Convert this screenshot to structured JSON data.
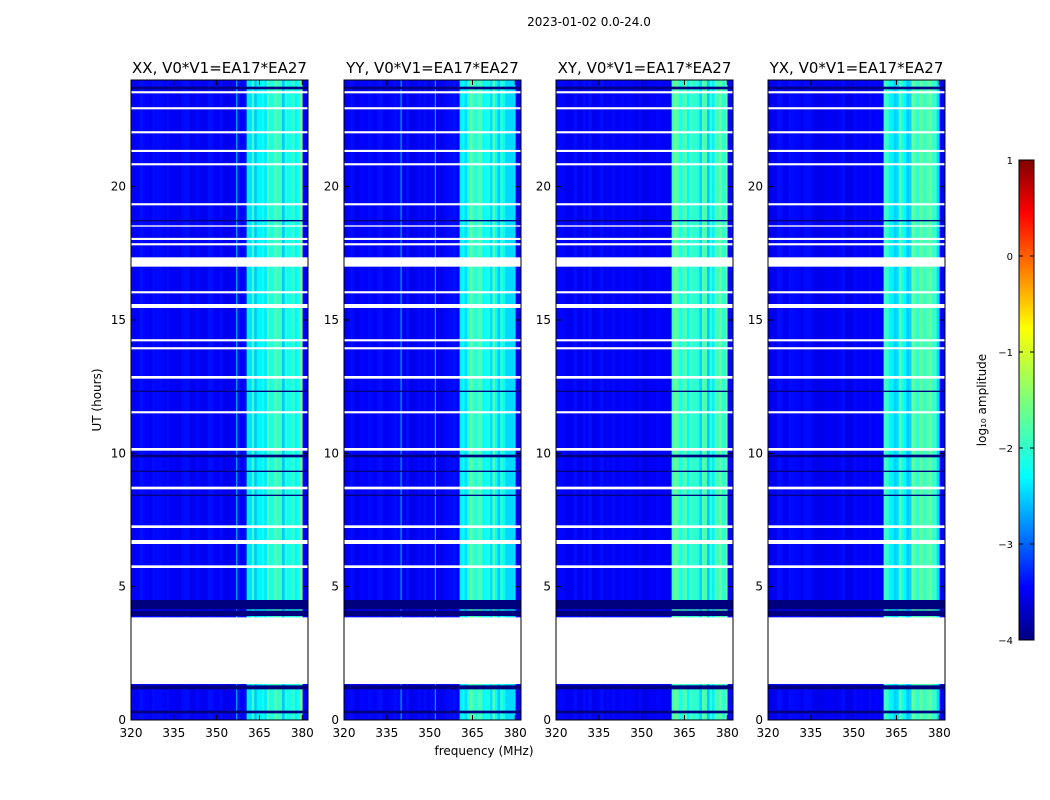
{
  "figure": {
    "suptitle": "2023-01-02 0.0-24.0",
    "xlabel": "frequency (MHz)",
    "ylabel": "UT (hours)"
  },
  "chart_data": {
    "type": "heatmap",
    "colormap": "jet",
    "xlim": [
      320,
      382
    ],
    "ylim": [
      0,
      24
    ],
    "xticks": [
      320,
      335,
      350,
      365,
      380
    ],
    "yticks": [
      0,
      5,
      10,
      15,
      20
    ],
    "panels": [
      {
        "title": "XX, V0*V1=EA17*EA27",
        "vertical_lines_mhz": [
          357
        ]
      },
      {
        "title": "YY, V0*V1=EA17*EA27",
        "vertical_lines_mhz": [
          340,
          352
        ]
      },
      {
        "title": "XY, V0*V1=EA17*EA27",
        "vertical_lines_mhz": []
      },
      {
        "title": "YX, V0*V1=EA17*EA27",
        "vertical_lines_mhz": []
      }
    ],
    "base_log_amplitude": -3.4,
    "bright_band_mhz": [
      360.5,
      380
    ],
    "bright_band_log_amplitude": -2.0,
    "flagged_white_hours": [
      [
        1.35,
        3.85
      ],
      [
        17.0,
        17.35
      ],
      [
        15.45,
        15.6
      ],
      [
        5.7,
        5.8
      ],
      [
        6.6,
        6.75
      ],
      [
        7.2,
        7.3
      ],
      [
        8.65,
        8.75
      ],
      [
        10.1,
        10.2
      ],
      [
        11.5,
        11.58
      ],
      [
        12.8,
        12.9
      ],
      [
        13.9,
        13.98
      ],
      [
        14.2,
        14.28
      ],
      [
        16.0,
        16.08
      ],
      [
        17.8,
        17.88
      ],
      [
        18.0,
        18.08
      ],
      [
        18.5,
        18.55
      ],
      [
        19.3,
        19.38
      ],
      [
        20.8,
        20.88
      ],
      [
        21.3,
        21.38
      ],
      [
        22.0,
        22.08
      ],
      [
        22.9,
        22.98
      ],
      [
        23.5,
        23.58
      ]
    ],
    "low_amplitude_hours": [
      [
        0.25,
        0.35
      ],
      [
        1.15,
        1.3
      ],
      [
        3.9,
        4.1
      ],
      [
        4.15,
        4.5
      ],
      [
        8.4,
        8.45
      ],
      [
        9.3,
        9.35
      ],
      [
        9.85,
        9.95
      ],
      [
        12.3,
        12.35
      ],
      [
        18.7,
        18.75
      ],
      [
        23.65,
        23.75
      ]
    ],
    "colorbar": {
      "label": "log₁₀ amplitude",
      "range": [
        -4,
        1
      ],
      "ticks": [
        {
          "value": 1,
          "label": "1"
        },
        {
          "value": 0,
          "label": "0"
        },
        {
          "value": -1,
          "label": "−1"
        },
        {
          "value": -2,
          "label": "−2"
        },
        {
          "value": -3,
          "label": "−3"
        },
        {
          "value": -4,
          "label": "−4"
        }
      ]
    }
  }
}
